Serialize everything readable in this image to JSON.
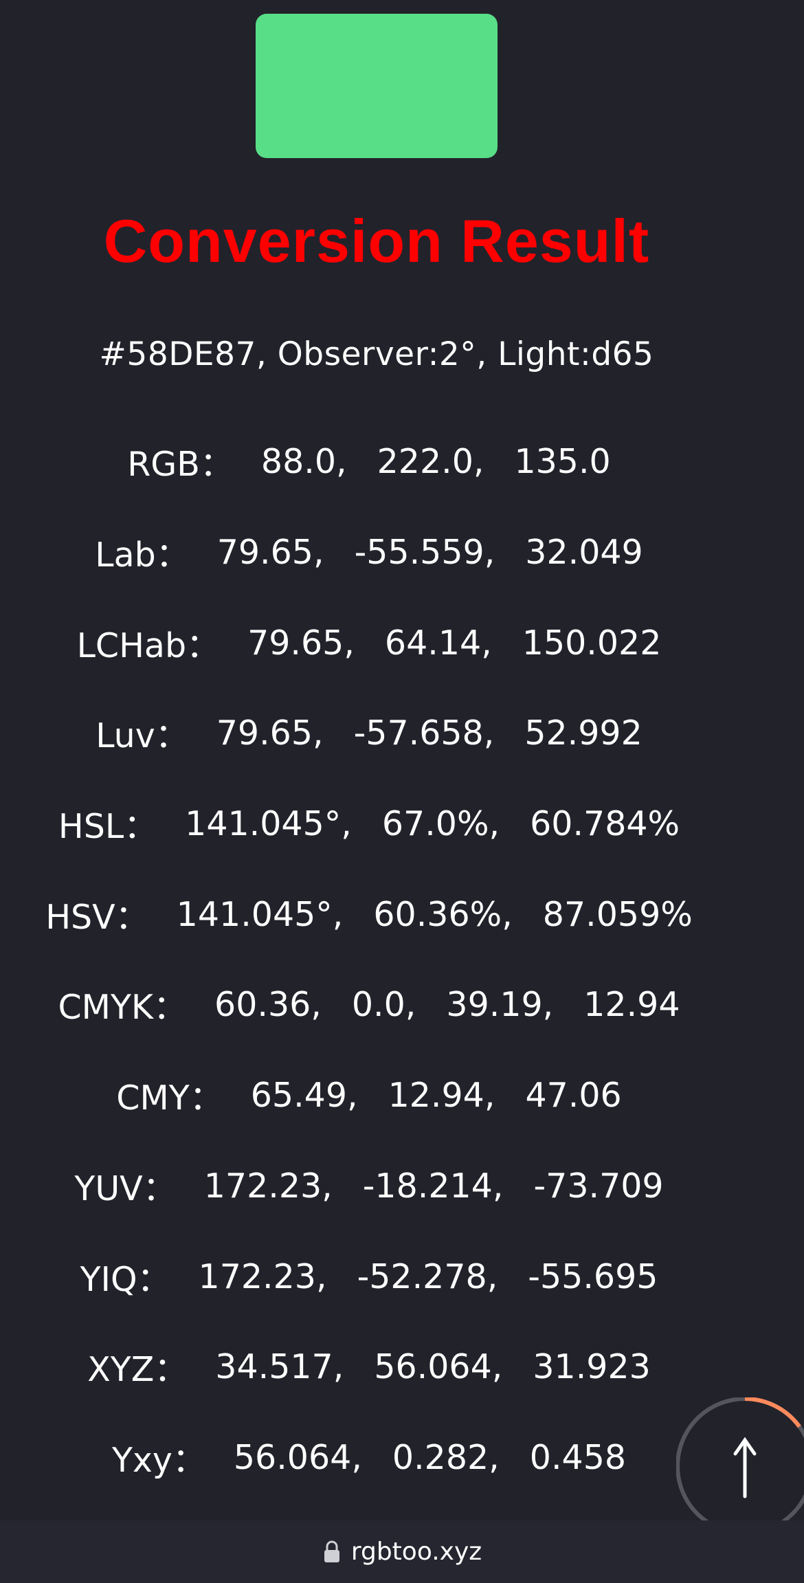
{
  "swatch": {
    "color": "#58DE87"
  },
  "title": {
    "text": "Conversion Result",
    "color": "#ff0000"
  },
  "summary": "#58DE87, Observer:2°, Light:d65",
  "rows": [
    {
      "label": "RGB：",
      "values": [
        "88.0,",
        "222.0,",
        "135.0"
      ]
    },
    {
      "label": "Lab：",
      "values": [
        "79.65,",
        "-55.559,",
        "32.049"
      ]
    },
    {
      "label": "LCHab：",
      "values": [
        "79.65,",
        "64.14,",
        "150.022"
      ]
    },
    {
      "label": "Luv：",
      "values": [
        "79.65,",
        "-57.658,",
        "52.992"
      ]
    },
    {
      "label": "HSL：",
      "values": [
        "141.045°,",
        "67.0%,",
        "60.784%"
      ]
    },
    {
      "label": "HSV：",
      "values": [
        "141.045°,",
        "60.36%,",
        "87.059%"
      ]
    },
    {
      "label": "CMYK：",
      "values": [
        "60.36,",
        "0.0,",
        "39.19,",
        "12.94"
      ]
    },
    {
      "label": "CMY：",
      "values": [
        "65.49,",
        "12.94,",
        "47.06"
      ]
    },
    {
      "label": "YUV：",
      "values": [
        "172.23,",
        "-18.214,",
        "-73.709"
      ]
    },
    {
      "label": "YIQ：",
      "values": [
        "172.23,",
        "-52.278,",
        "-55.695"
      ]
    },
    {
      "label": "XYZ：",
      "values": [
        "34.517,",
        "56.064,",
        "31.923"
      ]
    },
    {
      "label": "Yxy：",
      "values": [
        "56.064,",
        "0.282,",
        "0.458"
      ]
    }
  ],
  "scroll_top": {
    "icon": "arrow-up-icon",
    "progress": 0.15,
    "progress_color": "#ff8a5c",
    "track_color": "#55555e"
  },
  "browser_bar": {
    "icon": "lock-icon",
    "url": "rgbtoo.xyz"
  }
}
